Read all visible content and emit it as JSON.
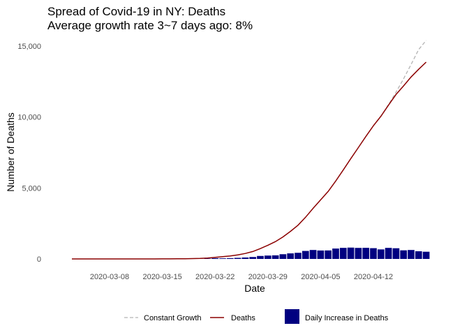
{
  "chart_data": {
    "type": "bar+line",
    "title": "Spread of Covid-19 in NY: Deaths",
    "subtitle": "Average growth rate 3~7 days ago: 8%",
    "xlabel": "Date",
    "ylabel": "Number of Deaths",
    "ylim": [
      0,
      15000
    ],
    "y_ticks": [
      0,
      5000,
      10000,
      15000
    ],
    "y_tick_labels": [
      "0",
      "5,000",
      "10,000",
      "15,000"
    ],
    "x_ticks": [
      "2020-03-08",
      "2020-03-15",
      "2020-03-22",
      "2020-03-29",
      "2020-04-05",
      "2020-04-12"
    ],
    "x_start": "2020-03-03",
    "grid": false,
    "legend_position": "bottom",
    "dates": [
      "2020-03-03",
      "2020-03-04",
      "2020-03-05",
      "2020-03-06",
      "2020-03-07",
      "2020-03-08",
      "2020-03-09",
      "2020-03-10",
      "2020-03-11",
      "2020-03-12",
      "2020-03-13",
      "2020-03-14",
      "2020-03-15",
      "2020-03-16",
      "2020-03-17",
      "2020-03-18",
      "2020-03-19",
      "2020-03-20",
      "2020-03-21",
      "2020-03-22",
      "2020-03-23",
      "2020-03-24",
      "2020-03-25",
      "2020-03-26",
      "2020-03-27",
      "2020-03-28",
      "2020-03-29",
      "2020-03-30",
      "2020-03-31",
      "2020-04-01",
      "2020-04-02",
      "2020-04-03",
      "2020-04-04",
      "2020-04-05",
      "2020-04-06",
      "2020-04-07",
      "2020-04-08",
      "2020-04-09",
      "2020-04-10",
      "2020-04-11",
      "2020-04-12",
      "2020-04-13",
      "2020-04-14",
      "2020-04-15",
      "2020-04-16",
      "2020-04-17",
      "2020-04-18",
      "2020-04-19"
    ],
    "series": [
      {
        "name": "Deaths",
        "kind": "line",
        "color": "#8b0000",
        "values": [
          0,
          0,
          0,
          0,
          0,
          0,
          0,
          0,
          0,
          0,
          0,
          0,
          3,
          7,
          13,
          17,
          27,
          35,
          60,
          114,
          157,
          210,
          285,
          385,
          519,
          728,
          965,
          1218,
          1550,
          1941,
          2373,
          2935,
          3565,
          4159,
          4758,
          5489,
          6268,
          7067,
          7844,
          8627,
          9385,
          10056,
          10834,
          11586,
          12192,
          12822,
          13362,
          13869
        ]
      },
      {
        "name": "Constant Growth",
        "kind": "line",
        "color": "#b3b3b3",
        "dash": true,
        "x": [
          "2020-04-12",
          "2020-04-13",
          "2020-04-14",
          "2020-04-15",
          "2020-04-16",
          "2020-04-17",
          "2020-04-18",
          "2020-04-19"
        ],
        "values": [
          9385,
          10056,
          10870,
          11750,
          12690,
          13700,
          14750,
          15400
        ]
      },
      {
        "name": "Daily Increase in Deaths",
        "kind": "bar",
        "color": "#000080",
        "values": [
          0,
          0,
          0,
          0,
          0,
          0,
          0,
          0,
          0,
          0,
          0,
          0,
          3,
          4,
          6,
          4,
          10,
          8,
          25,
          54,
          43,
          53,
          75,
          100,
          134,
          209,
          237,
          253,
          332,
          391,
          432,
          562,
          630,
          594,
          599,
          731,
          779,
          799,
          777,
          783,
          758,
          671,
          778,
          752,
          606,
          630,
          540,
          507
        ]
      }
    ]
  }
}
